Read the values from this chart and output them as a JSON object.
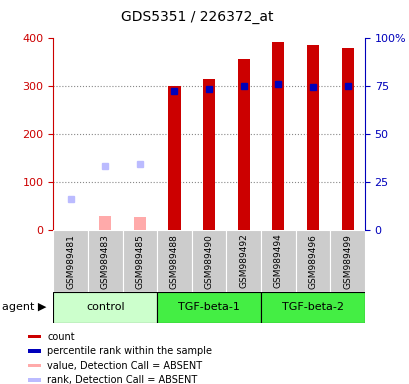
{
  "title": "GDS5351 / 226372_at",
  "samples": [
    "GSM989481",
    "GSM989483",
    "GSM989485",
    "GSM989488",
    "GSM989490",
    "GSM989492",
    "GSM989494",
    "GSM989496",
    "GSM989499"
  ],
  "count_values": [
    null,
    null,
    null,
    300,
    315,
    357,
    393,
    387,
    380
  ],
  "rank_values": [
    null,
    null,
    null,
    290,
    295,
    300,
    305,
    298,
    300
  ],
  "absent_value": [
    null,
    30,
    28,
    null,
    null,
    null,
    null,
    null,
    null
  ],
  "absent_rank": [
    65,
    135,
    138,
    null,
    null,
    null,
    null,
    null,
    null
  ],
  "ylim": [
    0,
    400
  ],
  "right_ylim": [
    0,
    100
  ],
  "yticks": [
    0,
    100,
    200,
    300,
    400
  ],
  "right_yticks": [
    0,
    25,
    50,
    75,
    100
  ],
  "right_yticklabels": [
    "0",
    "25",
    "50",
    "75",
    "100%"
  ],
  "count_color": "#cc0000",
  "rank_color": "#0000bb",
  "absent_val_color": "#ffaaaa",
  "absent_rank_color": "#bbbbff",
  "grid_color": "#888888",
  "ylabel_color_left": "#cc0000",
  "ylabel_color_right": "#0000bb",
  "sample_box_color": "#cccccc",
  "group_configs": [
    {
      "label": "control",
      "color": "#ccffcc",
      "start": 0,
      "end": 2
    },
    {
      "label": "TGF-beta-1",
      "color": "#44ee44",
      "start": 3,
      "end": 5
    },
    {
      "label": "TGF-beta-2",
      "color": "#44ee44",
      "start": 6,
      "end": 8
    }
  ],
  "legend_items": [
    {
      "color": "#cc0000",
      "label": "count"
    },
    {
      "color": "#0000bb",
      "label": "percentile rank within the sample"
    },
    {
      "color": "#ffaaaa",
      "label": "value, Detection Call = ABSENT"
    },
    {
      "color": "#bbbbff",
      "label": "rank, Detection Call = ABSENT"
    }
  ]
}
